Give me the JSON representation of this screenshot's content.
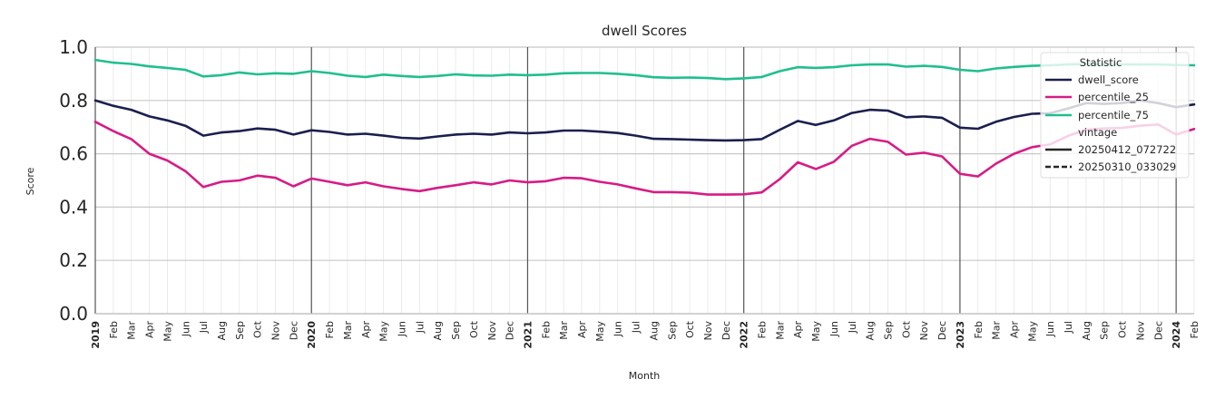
{
  "chart_data": {
    "type": "line",
    "title": "dwell Scores",
    "xlabel": "Month",
    "ylabel": "Score",
    "ylim": [
      0.0,
      1.0
    ],
    "yticks": [
      "0.0",
      "0.2",
      "0.4",
      "0.6",
      "0.8",
      "1.0"
    ],
    "grid": true,
    "legend_position": "top-right",
    "x_start": "2019-01",
    "x": [
      "2019",
      "Feb",
      "Mar",
      "Apr",
      "May",
      "Jun",
      "Jul",
      "Aug",
      "Sep",
      "Oct",
      "Nov",
      "Dec",
      "2020",
      "Feb",
      "Mar",
      "Apr",
      "May",
      "Jun",
      "Jul",
      "Aug",
      "Sep",
      "Oct",
      "Nov",
      "Dec",
      "2021",
      "Feb",
      "Mar",
      "Apr",
      "May",
      "Jun",
      "Jul",
      "Aug",
      "Sep",
      "Oct",
      "Nov",
      "Dec",
      "2022",
      "Feb",
      "Mar",
      "Apr",
      "May",
      "Jun",
      "Jul",
      "Aug",
      "Sep",
      "Oct",
      "Nov",
      "Dec",
      "2023",
      "Feb",
      "Mar",
      "Apr",
      "May",
      "Jun",
      "Jul",
      "Aug",
      "Sep",
      "Oct",
      "Nov",
      "Dec",
      "2024",
      "Feb"
    ],
    "series": [
      {
        "name": "dwell_score",
        "color": "#1b1f4e",
        "values": [
          0.8,
          0.78,
          0.765,
          0.74,
          0.725,
          0.705,
          0.668,
          0.68,
          0.685,
          0.695,
          0.69,
          0.672,
          0.688,
          0.682,
          0.672,
          0.675,
          0.668,
          0.66,
          0.657,
          0.665,
          0.672,
          0.675,
          0.672,
          0.68,
          0.677,
          0.68,
          0.687,
          0.687,
          0.683,
          0.678,
          0.668,
          0.656,
          0.655,
          0.653,
          0.651,
          0.65,
          0.651,
          0.655,
          0.69,
          0.723,
          0.708,
          0.725,
          0.753,
          0.765,
          0.762,
          0.737,
          0.74,
          0.735,
          0.698,
          0.694,
          0.72,
          0.738,
          0.75,
          0.752,
          0.77,
          0.79,
          0.787,
          0.79,
          0.8,
          0.79,
          0.775,
          0.785
        ]
      },
      {
        "name": "percentile_25",
        "color": "#d61c85",
        "values": [
          0.72,
          0.685,
          0.655,
          0.6,
          0.575,
          0.535,
          0.475,
          0.495,
          0.5,
          0.518,
          0.51,
          0.478,
          0.507,
          0.495,
          0.482,
          0.493,
          0.478,
          0.468,
          0.46,
          0.472,
          0.482,
          0.493,
          0.485,
          0.5,
          0.493,
          0.497,
          0.51,
          0.508,
          0.495,
          0.485,
          0.47,
          0.456,
          0.456,
          0.454,
          0.447,
          0.447,
          0.448,
          0.455,
          0.505,
          0.568,
          0.543,
          0.57,
          0.63,
          0.656,
          0.645,
          0.597,
          0.604,
          0.59,
          0.525,
          0.515,
          0.563,
          0.6,
          0.625,
          0.635,
          0.667,
          0.69,
          0.695,
          0.697,
          0.705,
          0.71,
          0.672,
          0.693
        ]
      },
      {
        "name": "percentile_75",
        "color": "#1fbf8f",
        "values": [
          0.952,
          0.942,
          0.937,
          0.928,
          0.922,
          0.915,
          0.89,
          0.895,
          0.905,
          0.898,
          0.902,
          0.9,
          0.91,
          0.903,
          0.893,
          0.888,
          0.897,
          0.892,
          0.888,
          0.892,
          0.898,
          0.894,
          0.893,
          0.897,
          0.895,
          0.897,
          0.902,
          0.903,
          0.903,
          0.9,
          0.895,
          0.887,
          0.885,
          0.886,
          0.884,
          0.88,
          0.883,
          0.888,
          0.91,
          0.925,
          0.922,
          0.925,
          0.932,
          0.935,
          0.935,
          0.927,
          0.93,
          0.926,
          0.915,
          0.91,
          0.92,
          0.926,
          0.93,
          0.932,
          0.935,
          0.937,
          0.935,
          0.935,
          0.935,
          0.935,
          0.933,
          0.932
        ]
      }
    ],
    "legend": {
      "title_statistic": "Statistic",
      "title_vintage": "vintage",
      "statistic_items": [
        "dwell_score",
        "percentile_25",
        "percentile_75"
      ],
      "vintage_items": [
        {
          "label": "20250412_072722",
          "style": "solid"
        },
        {
          "label": "20250310_033029",
          "style": "dashed"
        }
      ]
    }
  }
}
